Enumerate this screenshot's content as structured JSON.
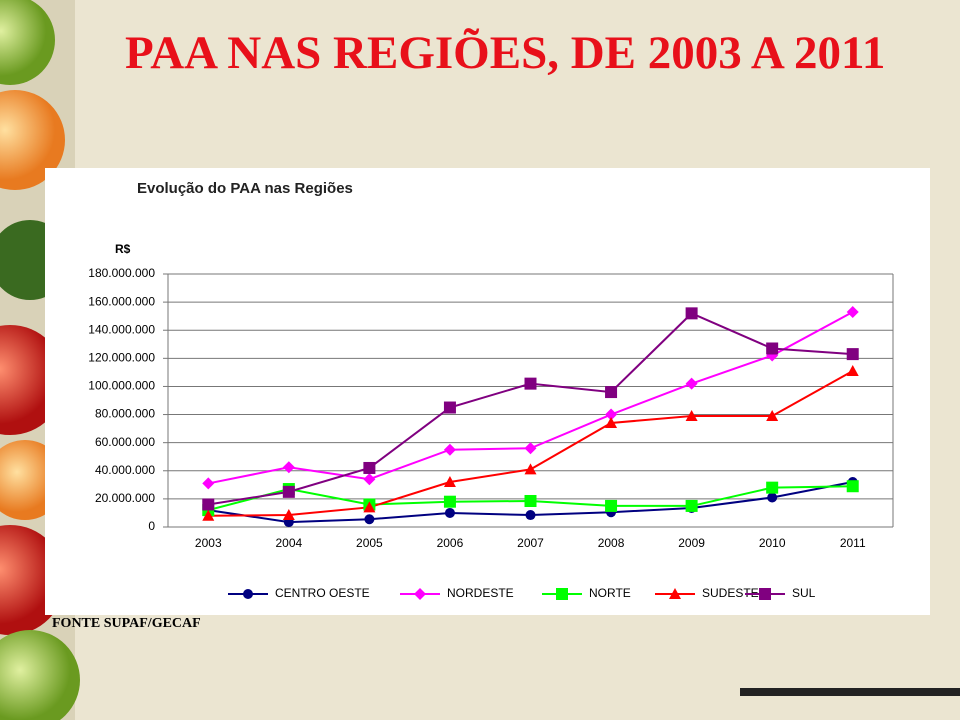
{
  "title": "PAA NAS REGIÕES, DE 2003 A 2011",
  "source": "FONTE SUPAF/GECAF",
  "chart_data": {
    "type": "line",
    "title": "Evolução do PAA nas Regiões",
    "ylabel": "R$",
    "categories": [
      "2003",
      "2004",
      "2005",
      "2006",
      "2007",
      "2008",
      "2009",
      "2010",
      "2011"
    ],
    "series": [
      {
        "name": "CENTRO OESTE",
        "color": "#000080",
        "marker": "circle",
        "values": [
          12000000,
          3500000,
          5500000,
          10000000,
          8500000,
          10500000,
          13500000,
          21000000,
          32000000
        ]
      },
      {
        "name": "NORDESTE",
        "color": "#ff00ff",
        "marker": "diamond",
        "values": [
          31000000,
          42500000,
          34000000,
          55000000,
          56000000,
          80000000,
          102000000,
          122000000,
          153000000
        ]
      },
      {
        "name": "NORTE",
        "color": "#00ff00",
        "marker": "square",
        "values": [
          12000000,
          27000000,
          16000000,
          18000000,
          18500000,
          15000000,
          15000000,
          28000000,
          29000000
        ]
      },
      {
        "name": "SUDESTE",
        "color": "#ff0000",
        "marker": "triangle",
        "values": [
          8000000,
          8500000,
          14000000,
          32000000,
          41000000,
          74000000,
          79000000,
          79000000,
          111000000
        ]
      },
      {
        "name": "SUL",
        "color": "#800080",
        "marker": "square",
        "values": [
          16000000,
          25000000,
          42000000,
          85000000,
          102000000,
          96000000,
          152000000,
          127000000,
          123000000
        ]
      }
    ],
    "ylim": [
      0,
      180000000
    ],
    "yticks": [
      0,
      {
        "value": 20000000,
        "label": "20.000.000"
      },
      {
        "value": 40000000,
        "label": "40.000.000"
      },
      {
        "value": 60000000,
        "label": "60.000.000"
      },
      {
        "value": 80000000,
        "label": "80.000.000"
      },
      {
        "value": 100000000,
        "label": "100.000.000"
      },
      {
        "value": 120000000,
        "label": "120.000.000"
      },
      {
        "value": 140000000,
        "label": "140.000.000"
      },
      {
        "value": 160000000,
        "label": "160.000.000"
      },
      {
        "value": 180000000,
        "label": "180.000.000"
      }
    ],
    "grid": true,
    "legend": "bottom"
  }
}
